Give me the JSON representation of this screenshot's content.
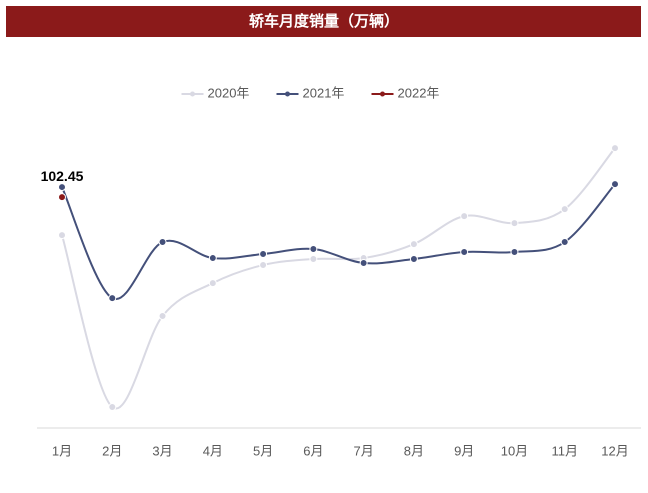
{
  "chart_data": {
    "type": "line",
    "title": "轿车月度销量（万辆）",
    "categories": [
      "1月",
      "2月",
      "3月",
      "4月",
      "5月",
      "6月",
      "7月",
      "8月",
      "9月",
      "10月",
      "11月",
      "12月"
    ],
    "series": [
      {
        "name": "2020年",
        "color": "#d9d9e3",
        "values": [
          85.6,
          9.3,
          49.7,
          64.3,
          72.3,
          75.0,
          75.4,
          81.6,
          94.0,
          90.9,
          97.1,
          124.2
        ]
      },
      {
        "name": "2021年",
        "color": "#44507a",
        "values": [
          106.9,
          57.6,
          82.5,
          75.4,
          77.2,
          79.4,
          73.2,
          75.0,
          78.1,
          78.1,
          82.5,
          108.2
        ]
      },
      {
        "name": "2022年",
        "color": "#8b1a1a",
        "values": [
          102.45,
          null,
          null,
          null,
          null,
          null,
          null,
          null,
          null,
          null,
          null,
          null
        ]
      }
    ],
    "ylim": [
      0,
      130
    ],
    "legend": "top"
  }
}
